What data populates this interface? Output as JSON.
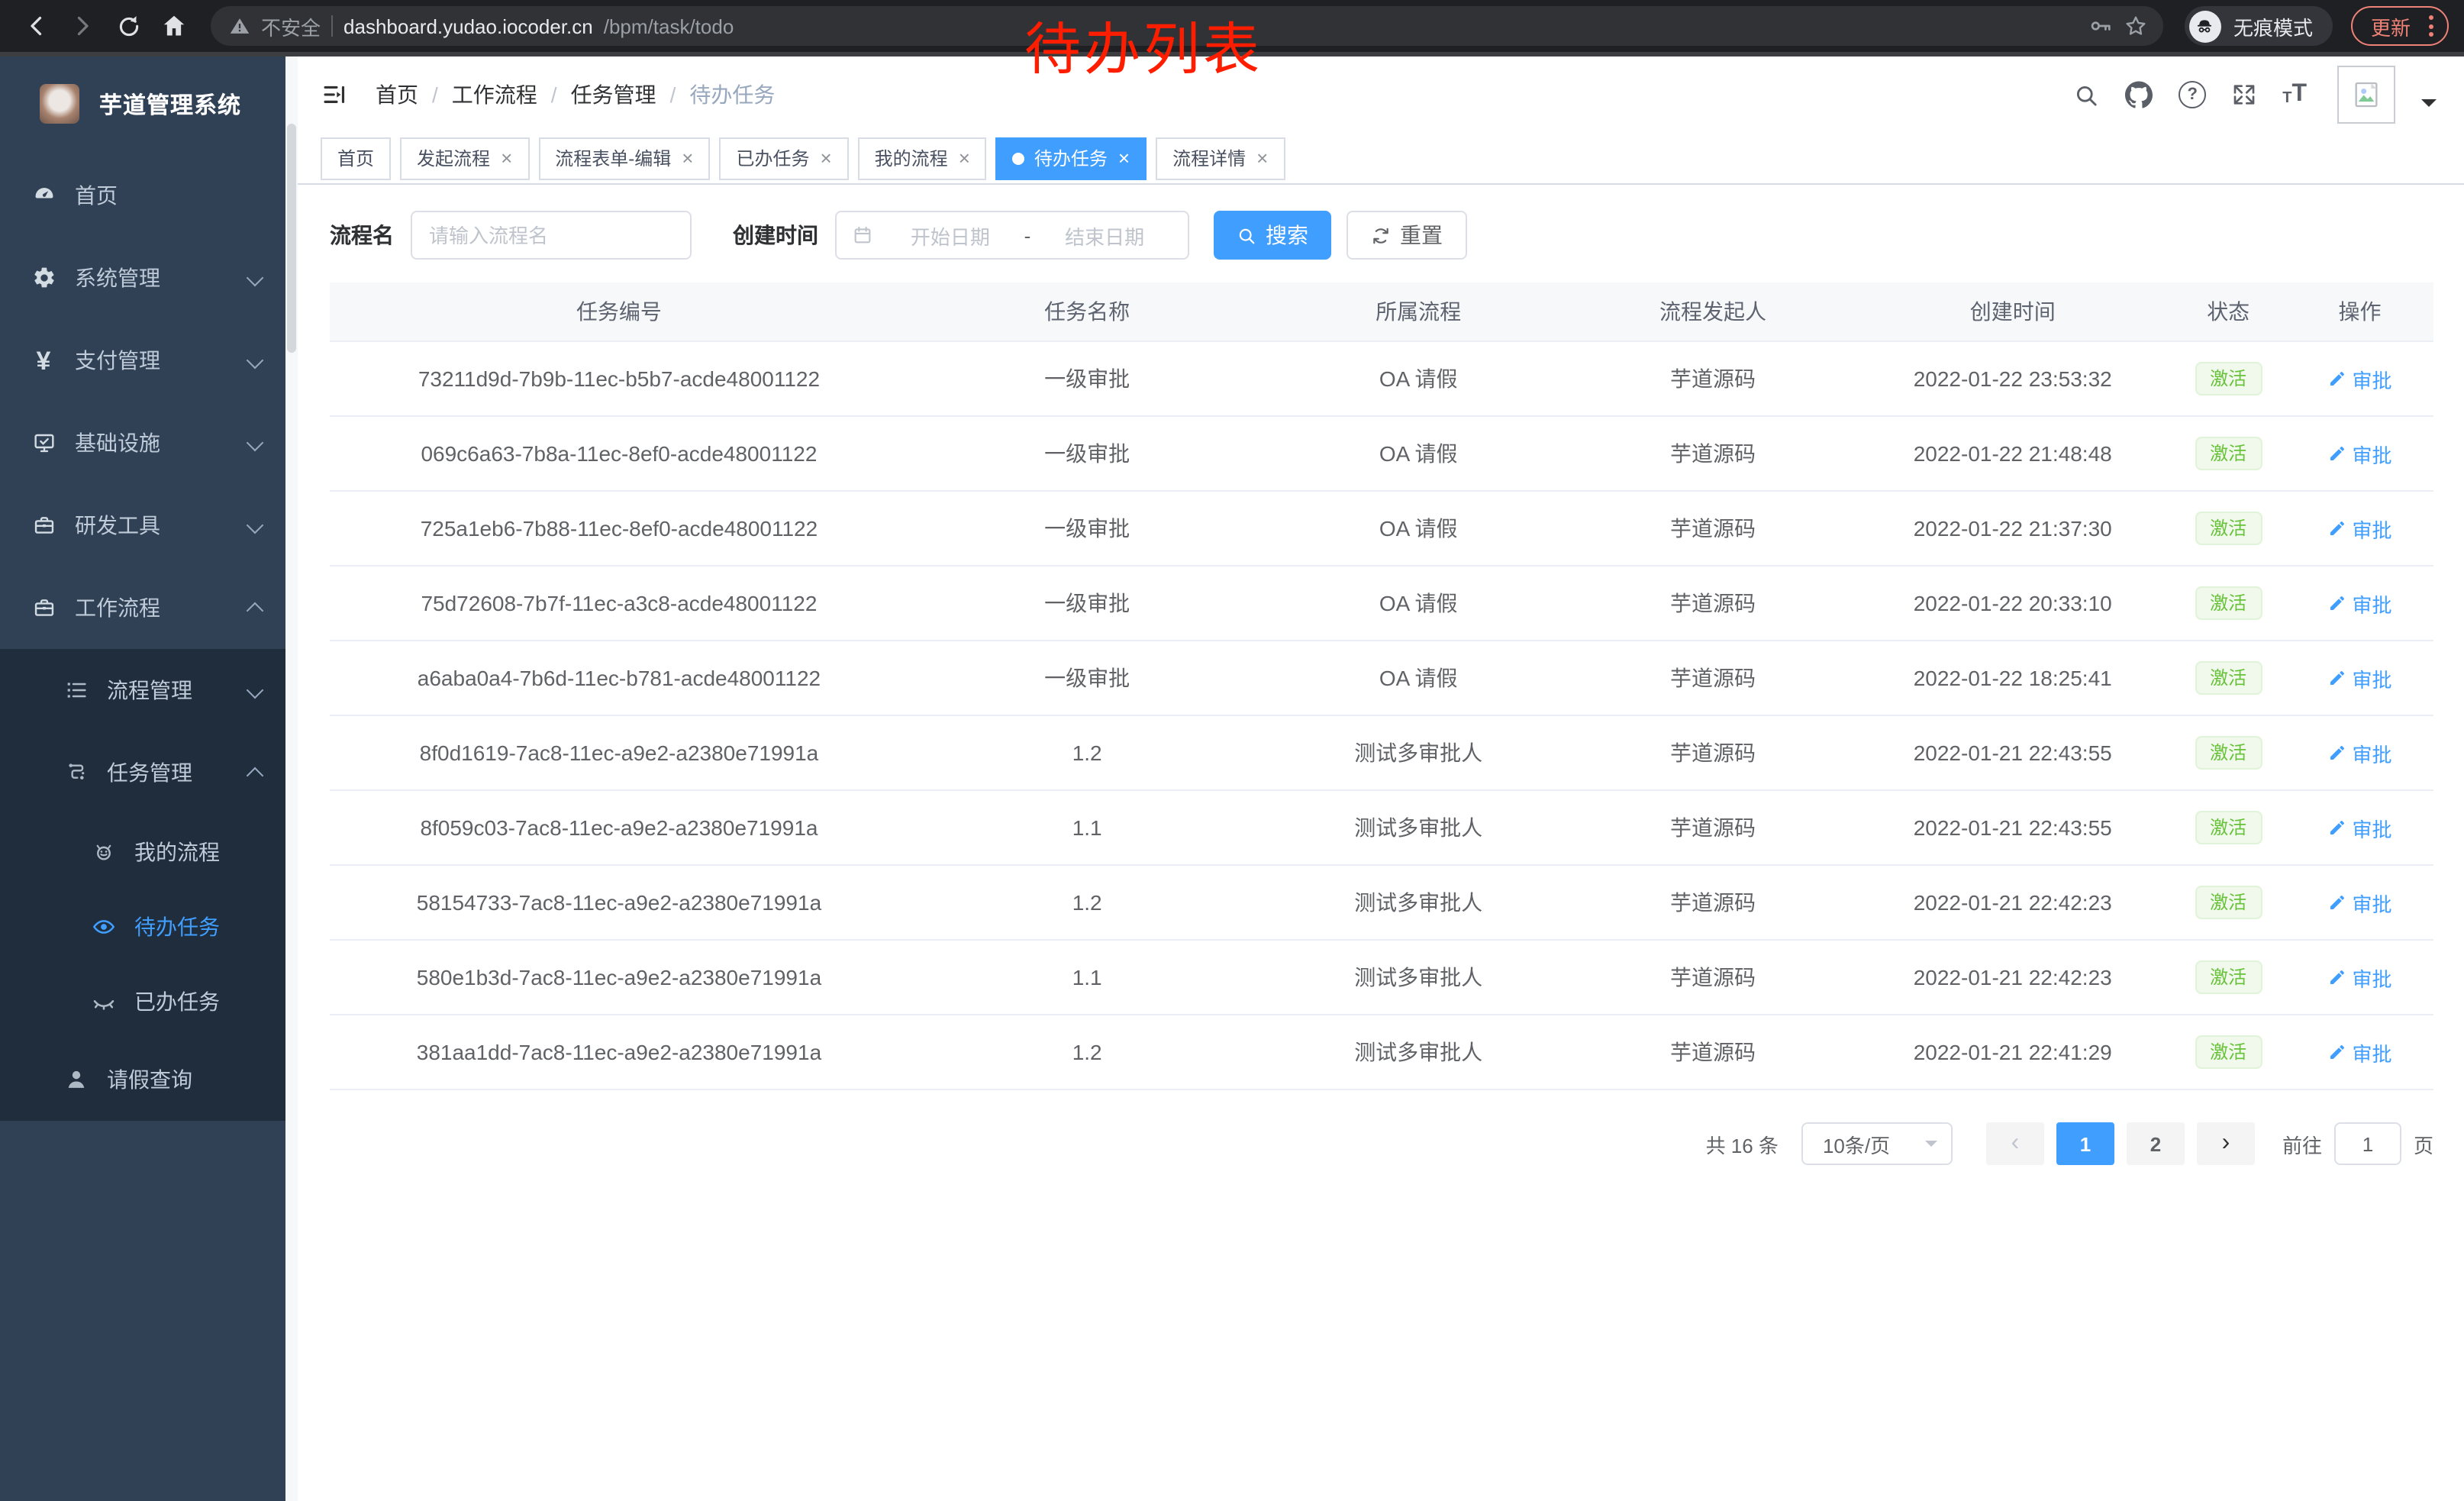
{
  "annotation": {
    "text": "待办列表"
  },
  "browser": {
    "security_label": "不安全",
    "url_host": "dashboard.yudao.iocoder.cn",
    "url_path": "/bpm/task/todo",
    "incognito_label": "无痕模式",
    "update_label": "更新"
  },
  "sidebar": {
    "title": "芋道管理系统",
    "items": [
      {
        "key": "home",
        "label": "首页",
        "icon": "dashboard-icon",
        "level": 0,
        "submenu": false,
        "active": false,
        "chevron": ""
      },
      {
        "key": "system",
        "label": "系统管理",
        "icon": "gear-icon",
        "level": 0,
        "submenu": false,
        "active": false,
        "chevron": "down"
      },
      {
        "key": "payment",
        "label": "支付管理",
        "icon": "yen-icon",
        "level": 0,
        "submenu": false,
        "active": false,
        "chevron": "down"
      },
      {
        "key": "infra",
        "label": "基础设施",
        "icon": "monitor-icon",
        "level": 0,
        "submenu": false,
        "active": false,
        "chevron": "down"
      },
      {
        "key": "devtools",
        "label": "研发工具",
        "icon": "toolbox-icon",
        "level": 0,
        "submenu": false,
        "active": false,
        "chevron": "down"
      },
      {
        "key": "workflow",
        "label": "工作流程",
        "icon": "briefcase-icon",
        "level": 0,
        "submenu": false,
        "active": false,
        "chevron": "up"
      },
      {
        "key": "process-mgmt",
        "label": "流程管理",
        "icon": "list-icon",
        "level": 1,
        "submenu": true,
        "active": false,
        "chevron": "down"
      },
      {
        "key": "task-mgmt",
        "label": "任务管理",
        "icon": "flow-icon",
        "level": 1,
        "submenu": true,
        "active": false,
        "chevron": "up"
      },
      {
        "key": "my-process",
        "label": "我的流程",
        "icon": "robot-icon",
        "level": 2,
        "submenu": true,
        "active": false,
        "chevron": ""
      },
      {
        "key": "todo-tasks",
        "label": "待办任务",
        "icon": "eye-icon",
        "level": 2,
        "submenu": true,
        "active": true,
        "chevron": ""
      },
      {
        "key": "done-tasks",
        "label": "已办任务",
        "icon": "eye-closed-icon",
        "level": 2,
        "submenu": true,
        "active": false,
        "chevron": ""
      },
      {
        "key": "leave-query",
        "label": "请假查询",
        "icon": "user-icon",
        "level": 1,
        "submenu": true,
        "active": false,
        "chevron": ""
      }
    ]
  },
  "header": {
    "help_glyph": "?",
    "fontsize_glyph": "T"
  },
  "breadcrumb": {
    "separator": "/",
    "items": [
      "首页",
      "工作流程",
      "任务管理",
      "待办任务"
    ]
  },
  "tabs": {
    "close_glyph": "×",
    "items": [
      {
        "key": "home",
        "label": "首页",
        "closable": false,
        "active": false
      },
      {
        "key": "launch",
        "label": "发起流程",
        "closable": true,
        "active": false
      },
      {
        "key": "form-edit",
        "label": "流程表单-编辑",
        "closable": true,
        "active": false
      },
      {
        "key": "done",
        "label": "已办任务",
        "closable": true,
        "active": false
      },
      {
        "key": "mine",
        "label": "我的流程",
        "closable": true,
        "active": false
      },
      {
        "key": "todo",
        "label": "待办任务",
        "closable": true,
        "active": true
      },
      {
        "key": "detail",
        "label": "流程详情",
        "closable": true,
        "active": false
      }
    ]
  },
  "filters": {
    "name_label": "流程名",
    "name_placeholder": "请输入流程名",
    "time_label": "创建时间",
    "start_placeholder": "开始日期",
    "range_separator": "-",
    "end_placeholder": "结束日期",
    "search_label": "搜索",
    "reset_label": "重置"
  },
  "table": {
    "columns": [
      "任务编号",
      "任务名称",
      "所属流程",
      "流程发起人",
      "创建时间",
      "状态",
      "操作"
    ],
    "rows": [
      {
        "task_id": "73211d9d-7b9b-11ec-b5b7-acde48001122",
        "task_name": "一级审批",
        "process_name": "OA 请假",
        "initiator": "芋道源码",
        "create_time": "2022-01-22 23:53:32",
        "status": "激活",
        "action": "审批"
      },
      {
        "task_id": "069c6a63-7b8a-11ec-8ef0-acde48001122",
        "task_name": "一级审批",
        "process_name": "OA 请假",
        "initiator": "芋道源码",
        "create_time": "2022-01-22 21:48:48",
        "status": "激活",
        "action": "审批"
      },
      {
        "task_id": "725a1eb6-7b88-11ec-8ef0-acde48001122",
        "task_name": "一级审批",
        "process_name": "OA 请假",
        "initiator": "芋道源码",
        "create_time": "2022-01-22 21:37:30",
        "status": "激活",
        "action": "审批"
      },
      {
        "task_id": "75d72608-7b7f-11ec-a3c8-acde48001122",
        "task_name": "一级审批",
        "process_name": "OA 请假",
        "initiator": "芋道源码",
        "create_time": "2022-01-22 20:33:10",
        "status": "激活",
        "action": "审批"
      },
      {
        "task_id": "a6aba0a4-7b6d-11ec-b781-acde48001122",
        "task_name": "一级审批",
        "process_name": "OA 请假",
        "initiator": "芋道源码",
        "create_time": "2022-01-22 18:25:41",
        "status": "激活",
        "action": "审批"
      },
      {
        "task_id": "8f0d1619-7ac8-11ec-a9e2-a2380e71991a",
        "task_name": "1.2",
        "process_name": "测试多审批人",
        "initiator": "芋道源码",
        "create_time": "2022-01-21 22:43:55",
        "status": "激活",
        "action": "审批"
      },
      {
        "task_id": "8f059c03-7ac8-11ec-a9e2-a2380e71991a",
        "task_name": "1.1",
        "process_name": "测试多审批人",
        "initiator": "芋道源码",
        "create_time": "2022-01-21 22:43:55",
        "status": "激活",
        "action": "审批"
      },
      {
        "task_id": "58154733-7ac8-11ec-a9e2-a2380e71991a",
        "task_name": "1.2",
        "process_name": "测试多审批人",
        "initiator": "芋道源码",
        "create_time": "2022-01-21 22:42:23",
        "status": "激活",
        "action": "审批"
      },
      {
        "task_id": "580e1b3d-7ac8-11ec-a9e2-a2380e71991a",
        "task_name": "1.1",
        "process_name": "测试多审批人",
        "initiator": "芋道源码",
        "create_time": "2022-01-21 22:42:23",
        "status": "激活",
        "action": "审批"
      },
      {
        "task_id": "381aa1dd-7ac8-11ec-a9e2-a2380e71991a",
        "task_name": "1.2",
        "process_name": "测试多审批人",
        "initiator": "芋道源码",
        "create_time": "2022-01-21 22:41:29",
        "status": "激活",
        "action": "审批"
      }
    ]
  },
  "pagination": {
    "total": "共 16 条",
    "page_size": "10条/页",
    "prev_glyph": "‹",
    "next_glyph": "›",
    "pages": [
      "1",
      "2"
    ],
    "active_page": "1",
    "goto_label": "前往",
    "goto_value": "1",
    "unit_label": "页"
  },
  "colors": {
    "accent": "#409eff",
    "success": "#67c23a",
    "danger_annotation": "#ff1d00"
  }
}
